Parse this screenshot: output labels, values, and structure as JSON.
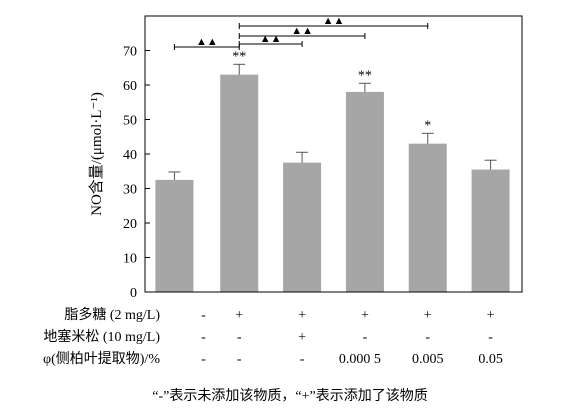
{
  "chart_data": {
    "type": "bar",
    "categories": [
      "1",
      "2",
      "3",
      "4",
      "5",
      "6"
    ],
    "values": [
      32.5,
      63.0,
      37.5,
      58.0,
      43.0,
      35.5
    ],
    "errors": [
      2.3,
      3.0,
      3.0,
      2.5,
      3.0,
      2.7
    ],
    "ylim": [
      0,
      80
    ],
    "yticks": [
      0,
      10,
      20,
      30,
      40,
      50,
      60,
      70
    ],
    "ylabel": "NO含量/(μmol·L⁻¹)",
    "bar_color": "#a6a6a6",
    "significance": [
      "",
      "**",
      "",
      "**",
      "*",
      ""
    ],
    "comparisons": [
      {
        "from": 1,
        "to": 2,
        "marker": "▲▲",
        "tier": 0
      },
      {
        "from": 2,
        "to": 3,
        "marker": "▲▲",
        "tier": 1
      },
      {
        "from": 2,
        "to": 4,
        "marker": "▲▲",
        "tier": 2
      },
      {
        "from": 2,
        "to": 5,
        "marker": "▲▲",
        "tier": 3
      }
    ],
    "treatments": [
      {
        "label": "脂多糖 (2 mg/L)",
        "values": [
          "-",
          "+",
          "+",
          "+",
          "+",
          "+"
        ]
      },
      {
        "label": "地塞米松 (10 mg/L)",
        "values": [
          "-",
          "-",
          "+",
          "-",
          "-",
          "-"
        ]
      },
      {
        "label": "φ(侧柏叶提取物)/%",
        "values": [
          "-",
          "-",
          "-",
          "0.000 5",
          "0.005",
          "0.05"
        ]
      }
    ],
    "footnote": "“-”表示未添加该物质，“+”表示添加了该物质"
  }
}
